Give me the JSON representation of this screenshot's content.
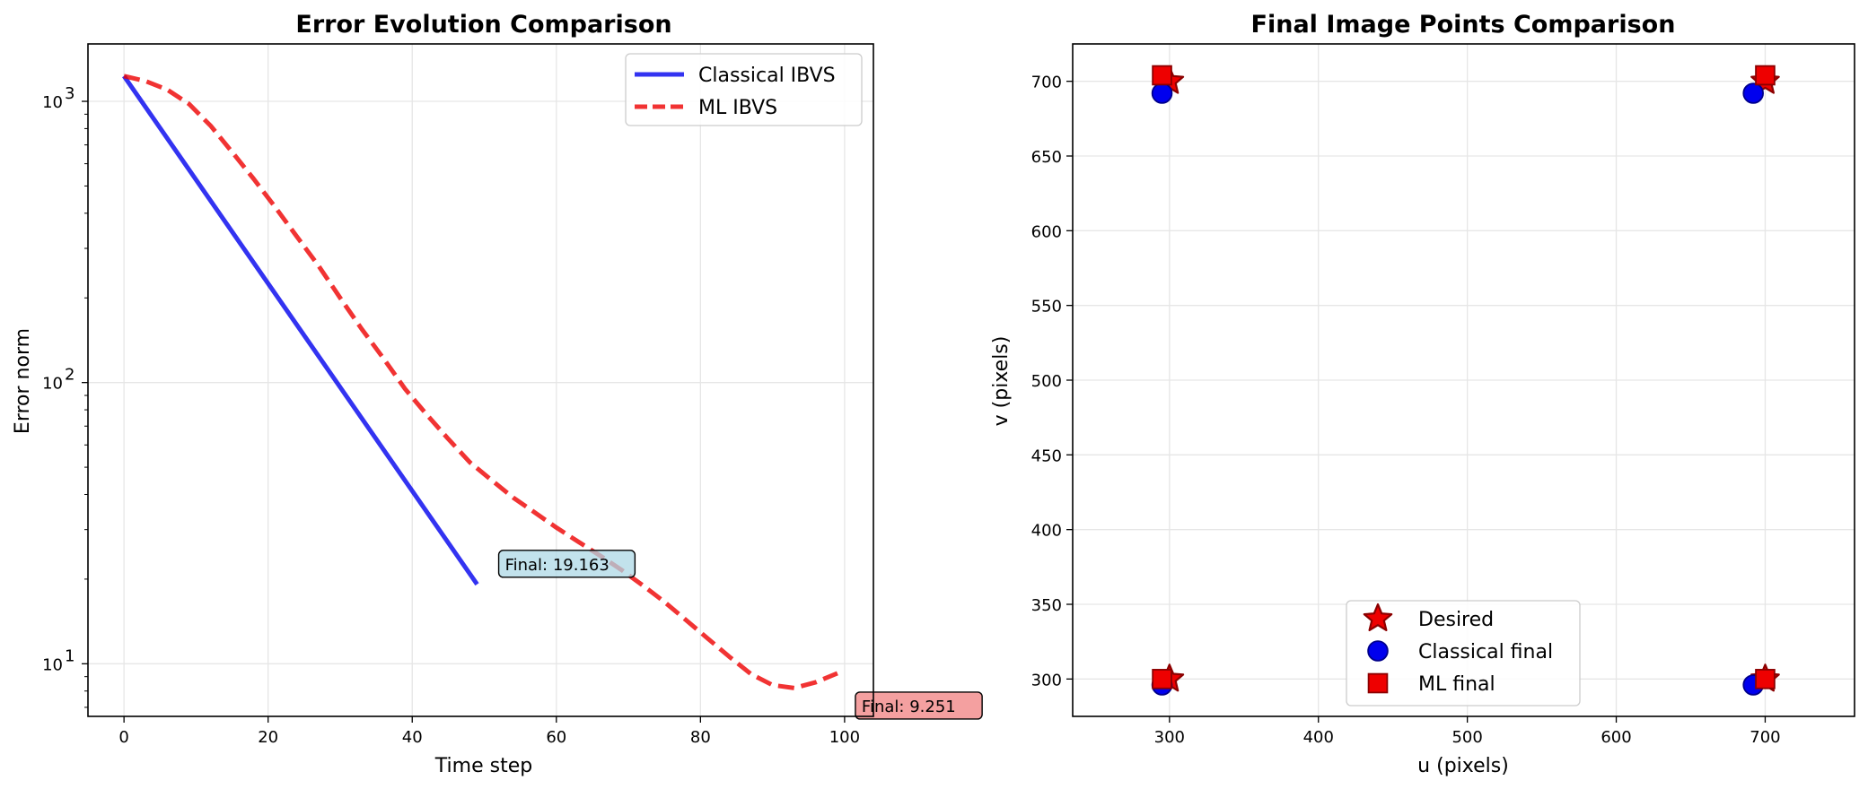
{
  "chart_data": [
    {
      "type": "line",
      "title": "Error Evolution Comparison",
      "xlabel": "Time step",
      "ylabel": "Error norm",
      "xlim": [
        -5,
        104
      ],
      "ylim": [
        6.5,
        1600
      ],
      "yscale": "log",
      "grid": true,
      "legend_position": "top-right",
      "x_ticks": [
        "0",
        "20",
        "40",
        "60",
        "80",
        "100"
      ],
      "x_tick_values": [
        0,
        20,
        40,
        60,
        80,
        100
      ],
      "y_ticks": [
        {
          "value": 10,
          "base": "10",
          "exp": "1"
        },
        {
          "value": 100,
          "base": "10",
          "exp": "2"
        },
        {
          "value": 1000,
          "base": "10",
          "exp": "3"
        }
      ],
      "series": [
        {
          "name": "Classical IBVS",
          "color": "#0000ee",
          "style": "solid",
          "points": [
            [
              0,
              1230
            ],
            [
              49,
              19.163
            ]
          ]
        },
        {
          "name": "ML IBVS",
          "color": "#ee0000",
          "style": "dashed",
          "points": [
            [
              0,
              1230
            ],
            [
              3,
              1180
            ],
            [
              6,
              1100
            ],
            [
              9,
              980
            ],
            [
              12,
              820
            ],
            [
              15,
              660
            ],
            [
              18,
              530
            ],
            [
              21,
              420
            ],
            [
              24,
              330
            ],
            [
              27,
              260
            ],
            [
              30,
              200
            ],
            [
              33,
              155
            ],
            [
              36,
              122
            ],
            [
              39,
              95
            ],
            [
              42,
              77
            ],
            [
              45,
              63
            ],
            [
              48,
              52
            ],
            [
              51,
              45
            ],
            [
              54,
              39
            ],
            [
              57,
              34.5
            ],
            [
              60,
              30.5
            ],
            [
              63,
              27.2
            ],
            [
              66,
              24.3
            ],
            [
              69,
              21.6
            ],
            [
              72,
              19
            ],
            [
              75,
              16.6
            ],
            [
              78,
              14.3
            ],
            [
              81,
              12.3
            ],
            [
              84,
              10.6
            ],
            [
              87,
              9.2
            ],
            [
              90,
              8.4
            ],
            [
              93,
              8.2
            ],
            [
              96,
              8.6
            ],
            [
              99,
              9.251
            ]
          ]
        }
      ],
      "annotations": [
        {
          "text": "Final: 19.163",
          "x": 52,
          "y": 22.5,
          "bg": "#add8e6"
        },
        {
          "text": "Final: 9.251",
          "x": 101.5,
          "y": 7.05,
          "bg": "#f08080"
        }
      ]
    },
    {
      "type": "scatter",
      "title": "Final Image Points Comparison",
      "xlabel": "u (pixels)",
      "ylabel": "v (pixels)",
      "xlim": [
        235,
        760
      ],
      "ylim": [
        275,
        725
      ],
      "grid": true,
      "legend_position": "lower center",
      "x_ticks": [
        "300",
        "400",
        "500",
        "600",
        "700"
      ],
      "x_tick_values": [
        300,
        400,
        500,
        600,
        700
      ],
      "y_ticks": [
        "300",
        "350",
        "400",
        "450",
        "500",
        "550",
        "600",
        "650",
        "700"
      ],
      "y_tick_values": [
        300,
        350,
        400,
        450,
        500,
        550,
        600,
        650,
        700
      ],
      "series": [
        {
          "name": "Desired",
          "marker": "star",
          "color": "#ee0000",
          "edge": "#8b0000",
          "points": [
            [
              300,
              700
            ],
            [
              700,
              700
            ],
            [
              300,
              300
            ],
            [
              700,
              300
            ]
          ]
        },
        {
          "name": "Classical final",
          "marker": "circle",
          "color": "#0000ee",
          "edge": "#00008b",
          "points": [
            [
              295,
              692
            ],
            [
              692,
              692
            ],
            [
              295,
              296
            ],
            [
              692,
              296
            ]
          ]
        },
        {
          "name": "ML final",
          "marker": "square",
          "color": "#ee0000",
          "edge": "#8b0000",
          "points": [
            [
              295,
              704
            ],
            [
              700,
              704
            ],
            [
              295,
              300
            ],
            [
              700,
              300
            ]
          ]
        }
      ]
    }
  ]
}
